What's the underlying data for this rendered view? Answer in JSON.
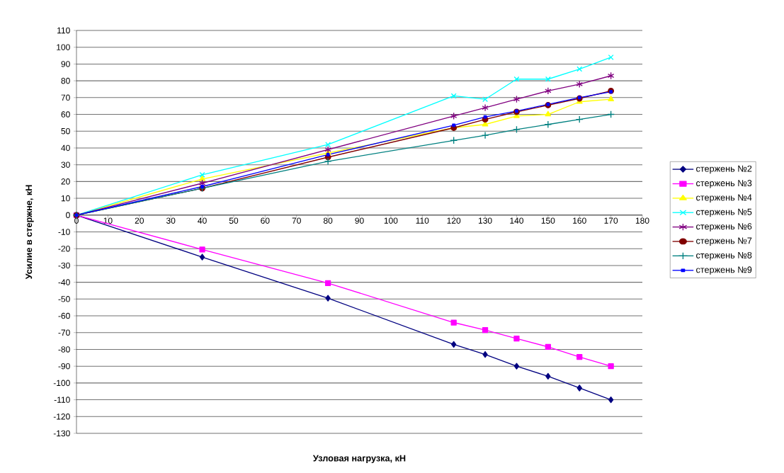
{
  "chart_data": {
    "type": "line",
    "xlabel": "Узловая нагрузка, кН",
    "ylabel": "Усилие в стержне, кН",
    "x": [
      0,
      40,
      80,
      120,
      130,
      140,
      150,
      160,
      170
    ],
    "series": [
      {
        "name": "стержень №2",
        "color": "#000080",
        "marker": "diamond",
        "values": [
          0,
          -25,
          -49.5,
          -77,
          -83,
          -90,
          -96,
          -103,
          -110
        ]
      },
      {
        "name": "стержень №3",
        "color": "#ff00ff",
        "marker": "square",
        "values": [
          0,
          -20.5,
          -40.5,
          -64,
          -68.5,
          -73.5,
          -78.5,
          -84.5,
          -90
        ]
      },
      {
        "name": "стержень №4",
        "color": "#ffff00",
        "marker": "triangle",
        "values": [
          0,
          21.5,
          37,
          52,
          54,
          59,
          60,
          67.5,
          69
        ]
      },
      {
        "name": "стержень №5",
        "color": "#00ffff",
        "marker": "cross",
        "values": [
          0,
          24,
          42,
          71,
          69,
          81,
          81,
          87,
          94
        ]
      },
      {
        "name": "стержень №6",
        "color": "#800080",
        "marker": "cross",
        "values": [
          0,
          19,
          39,
          59,
          64,
          69,
          74,
          78,
          83
        ]
      },
      {
        "name": "стержень №7",
        "color": "#800000",
        "marker": "circle",
        "values": [
          0,
          16,
          34.5,
          52,
          57,
          61.5,
          65.5,
          69.5,
          74
        ]
      },
      {
        "name": "стержень №8",
        "color": "#008080",
        "marker": "plus",
        "values": [
          0,
          16,
          32,
          44.5,
          47.5,
          51,
          54,
          57,
          60
        ]
      },
      {
        "name": "стержень №9",
        "color": "#0000ff",
        "marker": "square",
        "values": [
          0,
          17,
          36,
          53.5,
          58.5,
          62,
          66,
          70,
          73.5
        ]
      }
    ],
    "xlim": [
      0,
      180
    ],
    "ylim": [
      -130,
      110
    ],
    "xticks": [
      0,
      10,
      20,
      30,
      40,
      50,
      60,
      70,
      80,
      90,
      100,
      110,
      120,
      130,
      140,
      150,
      160,
      170,
      180
    ],
    "yticks": [
      -130,
      -120,
      -110,
      -100,
      -90,
      -80,
      -70,
      -60,
      -50,
      -40,
      -30,
      -20,
      -10,
      0,
      10,
      20,
      30,
      40,
      50,
      60,
      70,
      80,
      90,
      100,
      110
    ],
    "grid": "y",
    "legend": "right",
    "line_style": "solid"
  }
}
